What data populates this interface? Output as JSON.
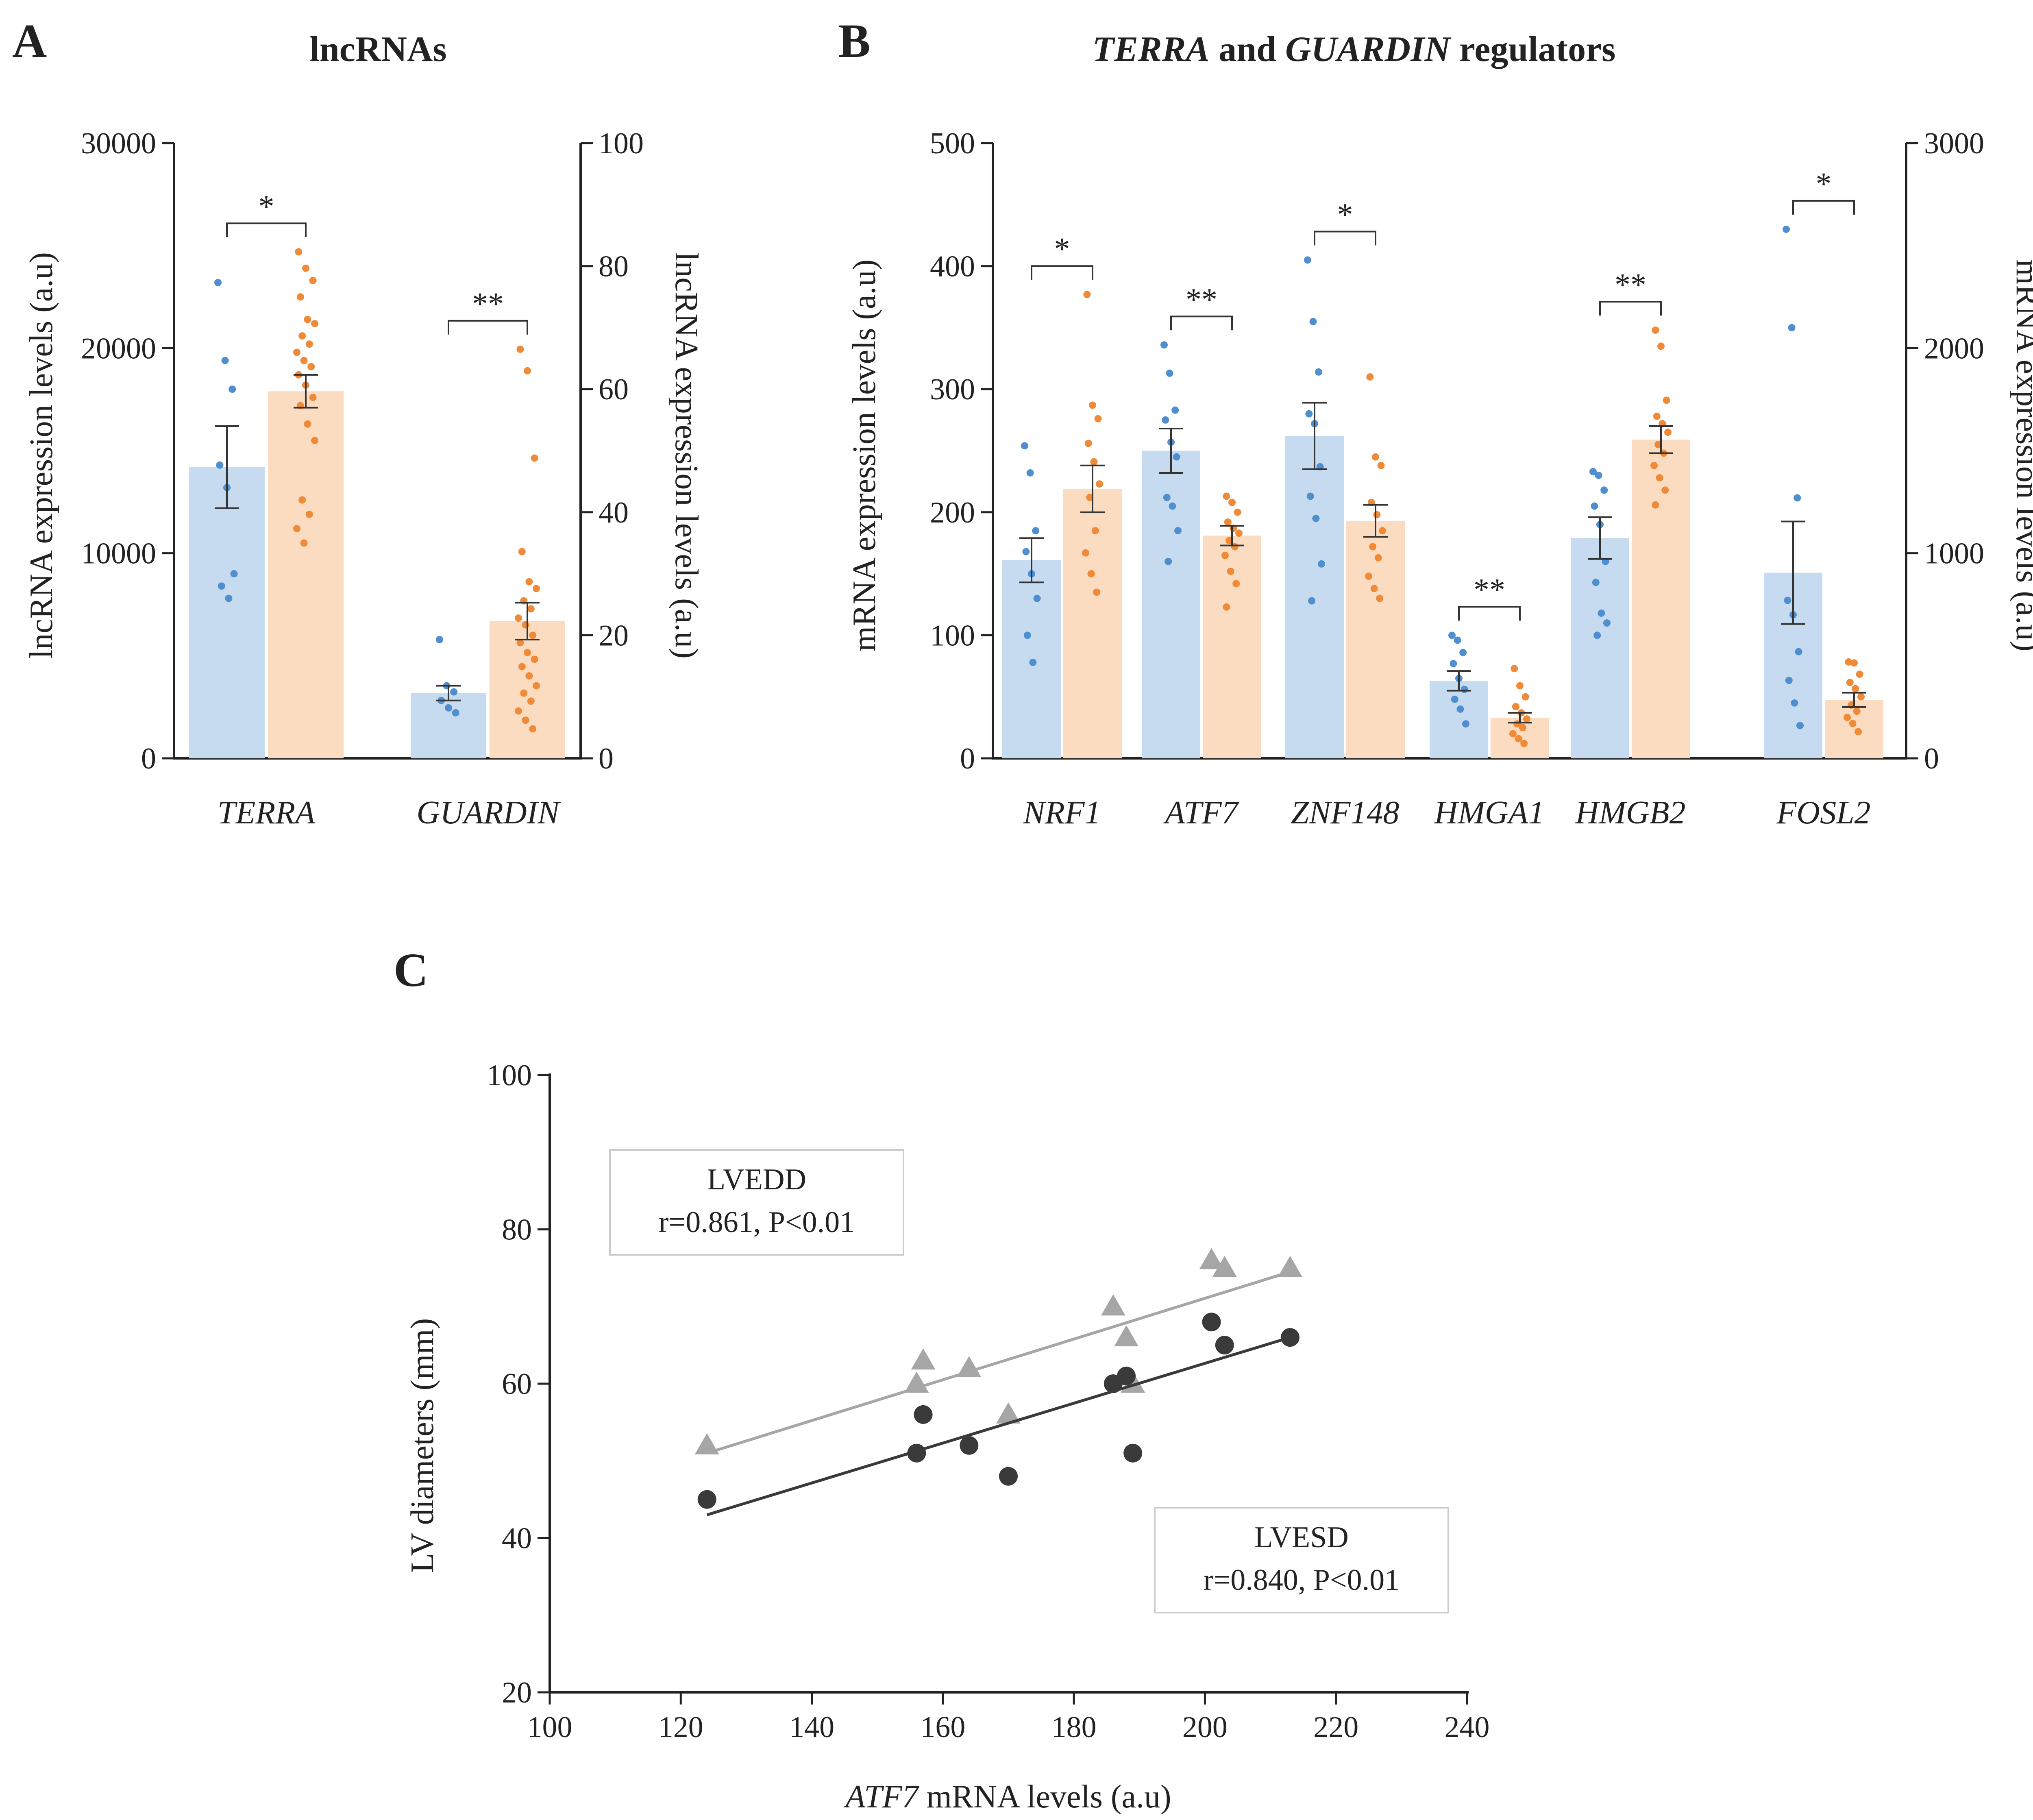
{
  "colors": {
    "blue_bar": "#c6dbf0",
    "orange_bar": "#fbdcc0",
    "blue_dot": "#4f8fcf",
    "orange_dot": "#f08a36",
    "axis": "#222222",
    "lvedd": "#a6a6a6",
    "lvesd": "#3a3a3a"
  },
  "chart_data": [
    {
      "panel": "A",
      "type": "bar",
      "title": "lncRNAs",
      "ylabel": "lncRNA expression levels (a.u)",
      "ylabel_right": "lncRNA expression levels (a.u)",
      "ylim": [
        0,
        30000
      ],
      "ylim_right": [
        0,
        100
      ],
      "yticks": [
        "0",
        "10000",
        "20000",
        "30000"
      ],
      "yticks_right": [
        "0",
        "20",
        "40",
        "60",
        "80",
        "100"
      ],
      "categories": [
        "TERRA",
        "GUARDIN"
      ],
      "groups": [
        {
          "category": "TERRA",
          "axis": "left",
          "significance": "*",
          "bars": [
            {
              "color": "blue",
              "mean": 14200,
              "sem": 2000,
              "points": [
                23200,
                19400,
                18000,
                14300,
                13200,
                9000,
                8400,
                7800
              ]
            },
            {
              "color": "orange",
              "mean": 17900,
              "sem": 800,
              "points": [
                24700,
                23900,
                23300,
                22500,
                21400,
                21200,
                20600,
                20200,
                19800,
                19400,
                19100,
                18700,
                18200,
                17600,
                17200,
                16300,
                15500,
                12600,
                11900,
                11200,
                10500
              ]
            }
          ]
        },
        {
          "category": "GUARDIN",
          "axis": "right",
          "significance": "**",
          "bars": [
            {
              "color": "blue",
              "mean": 10.6,
              "sem": 1.2,
              "points": [
                19.3,
                11.8,
                10.8,
                9.4,
                8.2,
                7.4
              ]
            },
            {
              "color": "orange",
              "mean": 22.3,
              "sem": 3.0,
              "points": [
                66.5,
                63.0,
                48.8,
                33.6,
                28.7,
                27.6,
                25.6,
                24.3,
                22.8,
                21.7,
                20.0,
                18.8,
                17.2,
                16.1,
                14.9,
                13.4,
                11.8,
                10.6,
                9.3,
                7.7,
                6.2,
                4.8
              ]
            }
          ]
        }
      ]
    },
    {
      "panel": "B",
      "type": "bar",
      "title_parts": [
        "TERRA",
        " and ",
        "GUARDIN",
        " regulators"
      ],
      "ylabel": "mRNA expression levels (a.u)",
      "ylabel_right": "mRNA expression levels (a.u)",
      "ylim": [
        0,
        500
      ],
      "ylim_right": [
        0,
        3000
      ],
      "yticks": [
        "0",
        "100",
        "200",
        "300",
        "400",
        "500"
      ],
      "yticks_right": [
        "0",
        "1000",
        "2000",
        "3000"
      ],
      "categories": [
        "NRF1",
        "ATF7",
        "ZNF148",
        "HMGA1",
        "HMGB2",
        "FOSL2"
      ],
      "groups": [
        {
          "category": "NRF1",
          "axis": "left",
          "significance": "*",
          "bars": [
            {
              "color": "blue",
              "mean": 161,
              "sem": 18,
              "points": [
                254,
                232,
                185,
                168,
                150,
                130,
                100,
                78
              ]
            },
            {
              "color": "orange",
              "mean": 219,
              "sem": 19,
              "points": [
                377,
                287,
                276,
                256,
                241,
                223,
                212,
                185,
                167,
                150,
                135
              ]
            }
          ]
        },
        {
          "category": "ATF7",
          "axis": "left",
          "significance": "**",
          "bars": [
            {
              "color": "blue",
              "mean": 250,
              "sem": 18,
              "points": [
                336,
                313,
                283,
                275,
                257,
                245,
                212,
                205,
                185,
                160
              ]
            },
            {
              "color": "orange",
              "mean": 181,
              "sem": 8,
              "points": [
                213,
                208,
                200,
                192,
                187,
                183,
                177,
                172,
                165,
                152,
                142,
                123
              ]
            }
          ]
        },
        {
          "category": "ZNF148",
          "axis": "left",
          "significance": "*",
          "bars": [
            {
              "color": "blue",
              "mean": 262,
              "sem": 27,
              "points": [
                405,
                355,
                314,
                280,
                272,
                237,
                213,
                195,
                158,
                128
              ]
            },
            {
              "color": "orange",
              "mean": 193,
              "sem": 13,
              "points": [
                310,
                245,
                238,
                208,
                198,
                185,
                172,
                163,
                148,
                138,
                130
              ]
            }
          ]
        },
        {
          "category": "HMGA1",
          "axis": "left",
          "significance": "**",
          "bars": [
            {
              "color": "blue",
              "mean": 63,
              "sem": 8,
              "points": [
                100,
                96,
                86,
                77,
                65,
                56,
                48,
                40,
                28
              ]
            },
            {
              "color": "orange",
              "mean": 33,
              "sem": 4,
              "points": [
                73,
                59,
                50,
                42,
                37,
                32,
                28,
                25,
                20,
                16,
                12
              ]
            }
          ]
        },
        {
          "category": "HMGB2",
          "axis": "left",
          "significance": "**",
          "bars": [
            {
              "color": "blue",
              "mean": 179,
              "sem": 17,
              "points": [
                233,
                230,
                218,
                205,
                190,
                160,
                143,
                118,
                110,
                100
              ]
            },
            {
              "color": "orange",
              "mean": 259,
              "sem": 11,
              "points": [
                348,
                335,
                291,
                278,
                272,
                265,
                255,
                248,
                238,
                228,
                218,
                206
              ]
            }
          ]
        },
        {
          "category": "FOSL2",
          "axis": "right",
          "significance": "*",
          "bars": [
            {
              "color": "blue",
              "mean": 905,
              "sem": 250,
              "points": [
                2580,
                2100,
                1270,
                770,
                700,
                520,
                380,
                270,
                160
              ]
            },
            {
              "color": "orange",
              "mean": 285,
              "sem": 35,
              "points": [
                470,
                465,
                410,
                370,
                340,
                300,
                260,
                230,
                200,
                170,
                130
              ]
            }
          ]
        }
      ]
    },
    {
      "panel": "C",
      "type": "scatter",
      "xlabel_parts": [
        "ATF7",
        " mRNA levels (a.u)"
      ],
      "ylabel": "LV diameters (mm)",
      "xlim": [
        100,
        240
      ],
      "ylim": [
        20,
        100
      ],
      "xticks": [
        "100",
        "120",
        "140",
        "160",
        "180",
        "200",
        "220",
        "240"
      ],
      "yticks": [
        "20",
        "40",
        "60",
        "80",
        "100"
      ],
      "series": [
        {
          "name": "LVEDD",
          "marker": "triangle",
          "stat": "r=0.861, P<0.01",
          "fit": {
            "x": [
              124,
              213
            ],
            "y": [
              51,
              74.5
            ]
          },
          "points": [
            [
              124,
              52
            ],
            [
              156,
              60
            ],
            [
              157,
              63
            ],
            [
              164,
              62
            ],
            [
              170,
              56
            ],
            [
              186,
              70
            ],
            [
              188,
              66
            ],
            [
              189,
              60
            ],
            [
              201,
              76
            ],
            [
              203,
              75
            ],
            [
              213,
              75
            ]
          ]
        },
        {
          "name": "LVESD",
          "marker": "circle",
          "stat": "r=0.840, P<0.01",
          "fit": {
            "x": [
              124,
              213
            ],
            "y": [
              43,
              66
            ]
          },
          "points": [
            [
              124,
              45
            ],
            [
              156,
              51
            ],
            [
              157,
              56
            ],
            [
              164,
              52
            ],
            [
              170,
              48
            ],
            [
              186,
              60
            ],
            [
              188,
              61
            ],
            [
              189,
              51
            ],
            [
              201,
              68
            ],
            [
              203,
              65
            ],
            [
              213,
              66
            ]
          ]
        }
      ]
    }
  ],
  "panel_labels": {
    "a": "A",
    "b": "B",
    "c": "C"
  }
}
